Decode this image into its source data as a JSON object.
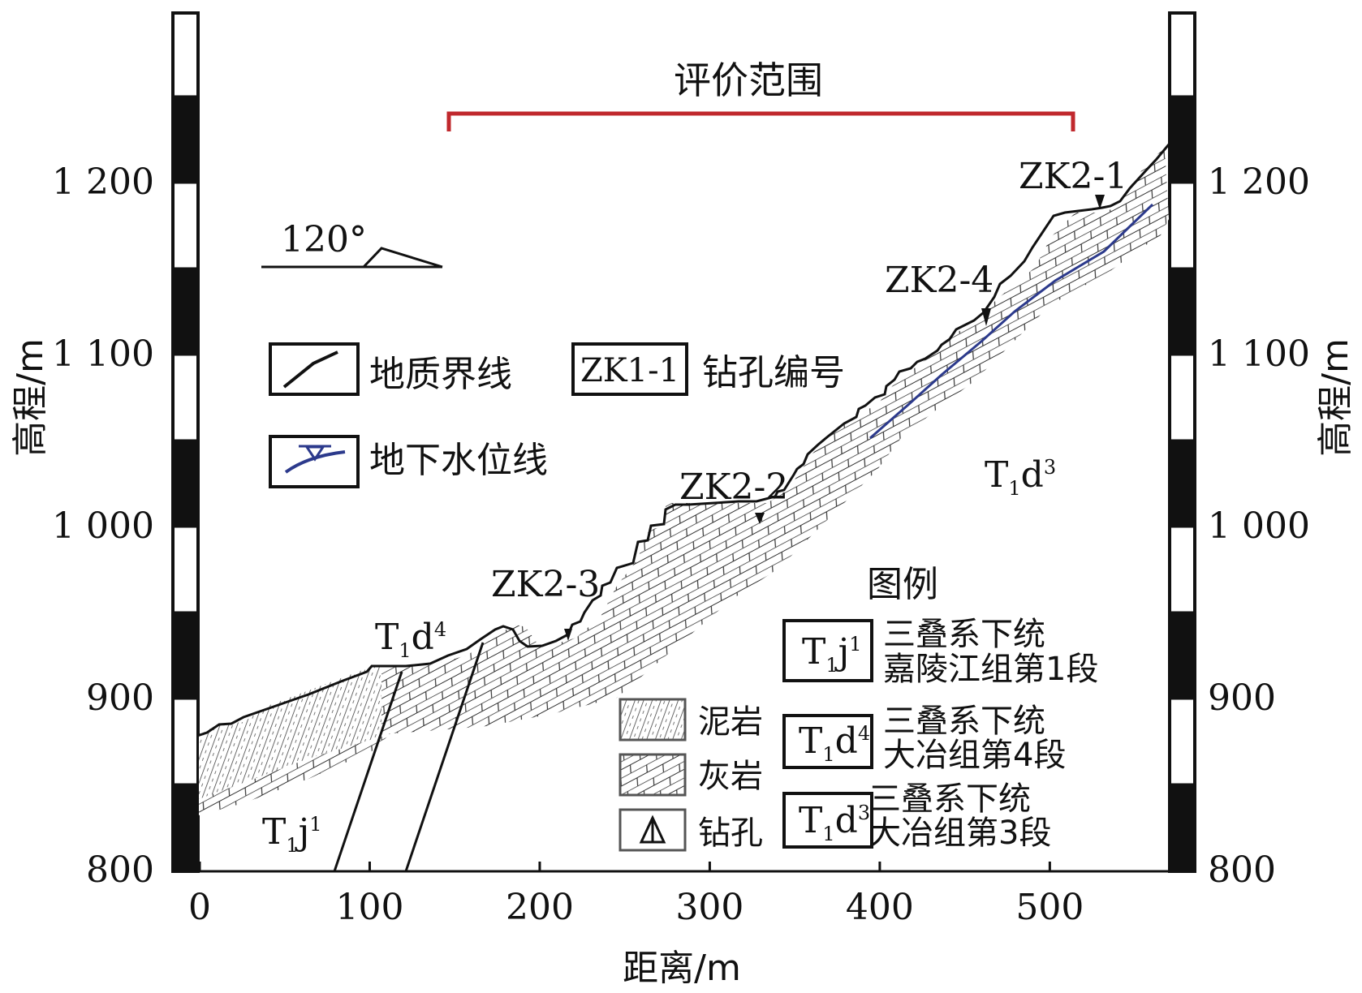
{
  "title": "评价范围",
  "axes": {
    "x_label": "距离/m",
    "y_label_left": "高程/m",
    "y_label_right": "高程/m",
    "x_ticks": [
      "0",
      "100",
      "200",
      "300",
      "400",
      "500"
    ],
    "y_ticks_left": [
      "1 200",
      "1 100",
      "1 000",
      "900",
      "800"
    ],
    "y_ticks_right": [
      "1 200",
      "1 100",
      "1 000",
      "900",
      "800"
    ],
    "x_range": [
      0,
      570
    ],
    "y_range": [
      800,
      1220
    ]
  },
  "orientation": "120°",
  "legend_top": {
    "geologic_boundary": "地质界线",
    "groundwater_line": "地下水位线",
    "borehole_sample_id": "ZK1-1",
    "borehole_id_label": "钻孔编号"
  },
  "boreholes": [
    "ZK2-3",
    "ZK2-2",
    "ZK2-4",
    "ZK2-1"
  ],
  "formation_labels": {
    "t1d4": {
      "base": "T",
      "sub": "1",
      "mid": "d",
      "sup": "4"
    },
    "t1d3": {
      "base": "T",
      "sub": "1",
      "mid": "d",
      "sup": "3"
    },
    "t1j1": {
      "base": "T",
      "sub": "1",
      "mid": "j",
      "sup": "1"
    }
  },
  "legend_title": "图例",
  "lithology_legend": {
    "mudstone": "泥岩",
    "limestone": "灰岩",
    "borehole": "钻孔"
  },
  "strata_legend": [
    {
      "code": {
        "base": "T",
        "sub": "1",
        "mid": "j",
        "sup": "1"
      },
      "line1": "三叠系下统",
      "line2": "嘉陵江组第1段"
    },
    {
      "code": {
        "base": "T",
        "sub": "1",
        "mid": "d",
        "sup": "4"
      },
      "line1": "三叠系下统",
      "line2": "大冶组第4段"
    },
    {
      "code": {
        "base": "T",
        "sub": "1",
        "mid": "d",
        "sup": "3"
      },
      "line1": "三叠系下统",
      "line2": "大冶组第3段"
    }
  ],
  "colors": {
    "scope_bracket": "#c0282d",
    "groundwater": "#2c3a8c",
    "line": "#111111"
  }
}
